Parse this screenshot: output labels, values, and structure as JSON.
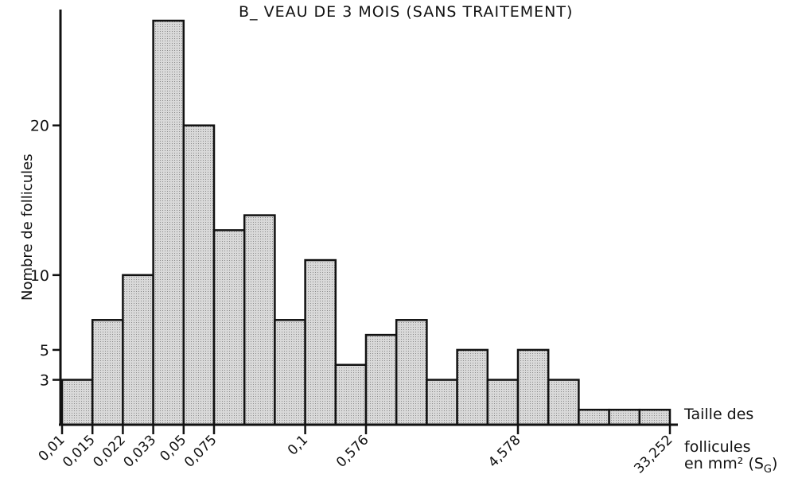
{
  "chart_data": {
    "type": "bar",
    "title": "B_ VEAU DE 3 MOIS (SANS TRAITEMENT)",
    "ylabel": "Nombre de follicules",
    "xlabel_line1": "Taille des",
    "xlabel_line2": "follicules",
    "xlabel_line3": "en mm² (S",
    "xlabel_sub": "G",
    "xlabel_close": ")",
    "ylim": [
      0,
      27
    ],
    "yticks": [
      3,
      5,
      10,
      20
    ],
    "x_tick_labels": [
      {
        "label": "0,01",
        "bin": 0
      },
      {
        "label": "0,015",
        "bin": 1
      },
      {
        "label": "0,022",
        "bin": 2
      },
      {
        "label": "0,033",
        "bin": 3
      },
      {
        "label": "0,05",
        "bin": 4
      },
      {
        "label": "0,075",
        "bin": 5
      },
      {
        "label": "0,1",
        "bin": 8
      },
      {
        "label": "0,576",
        "bin": 10
      },
      {
        "label": "4,578",
        "bin": 15
      },
      {
        "label": "33,252",
        "bin": 20
      }
    ],
    "values": [
      3,
      7,
      10,
      27,
      20,
      13,
      14,
      7,
      11,
      4,
      6,
      7,
      3,
      5,
      3,
      5,
      3,
      1,
      1,
      1
    ],
    "grid": false,
    "bar_fill": "#cfcfcf",
    "bar_stroke": "#111111"
  }
}
